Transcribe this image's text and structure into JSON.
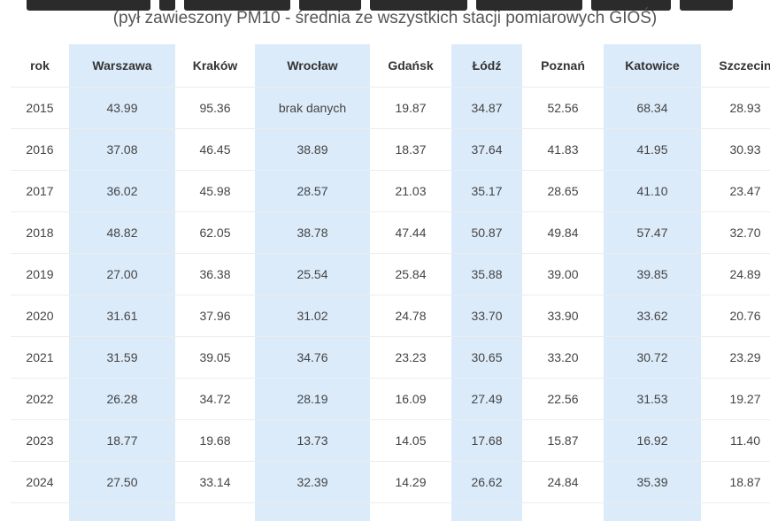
{
  "subtitle": "(pył zawieszony PM10 - średnia ze wszystkich stacji pomiarowych GIOŚ)",
  "colors": {
    "highlight_column": "#dcebfa",
    "text": "#444444"
  },
  "table": {
    "headers": [
      "rok",
      "Warszawa",
      "Kraków",
      "Wrocław",
      "Gdańsk",
      "Łódź",
      "Poznań",
      "Katowice",
      "Szczecin"
    ],
    "rows": [
      [
        "2015",
        "43.99",
        "95.36",
        "brak danych",
        "19.87",
        "34.87",
        "52.56",
        "68.34",
        "28.93"
      ],
      [
        "2016",
        "37.08",
        "46.45",
        "38.89",
        "18.37",
        "37.64",
        "41.83",
        "41.95",
        "30.93"
      ],
      [
        "2017",
        "36.02",
        "45.98",
        "28.57",
        "21.03",
        "35.17",
        "28.65",
        "41.10",
        "23.47"
      ],
      [
        "2018",
        "48.82",
        "62.05",
        "38.78",
        "47.44",
        "50.87",
        "49.84",
        "57.47",
        "32.70"
      ],
      [
        "2019",
        "27.00",
        "36.38",
        "25.54",
        "25.84",
        "35.88",
        "39.00",
        "39.85",
        "24.89"
      ],
      [
        "2020",
        "31.61",
        "37.96",
        "31.02",
        "24.78",
        "33.70",
        "33.90",
        "33.62",
        "20.76"
      ],
      [
        "2021",
        "31.59",
        "39.05",
        "34.76",
        "23.23",
        "30.65",
        "33.20",
        "30.72",
        "23.29"
      ],
      [
        "2022",
        "26.28",
        "34.72",
        "28.19",
        "16.09",
        "27.49",
        "22.56",
        "31.53",
        "19.27"
      ],
      [
        "2023",
        "18.77",
        "19.68",
        "13.73",
        "14.05",
        "17.68",
        "15.87",
        "16.92",
        "11.40"
      ],
      [
        "2024",
        "27.50",
        "33.14",
        "32.39",
        "14.29",
        "26.62",
        "24.84",
        "35.39",
        "18.87"
      ]
    ]
  }
}
